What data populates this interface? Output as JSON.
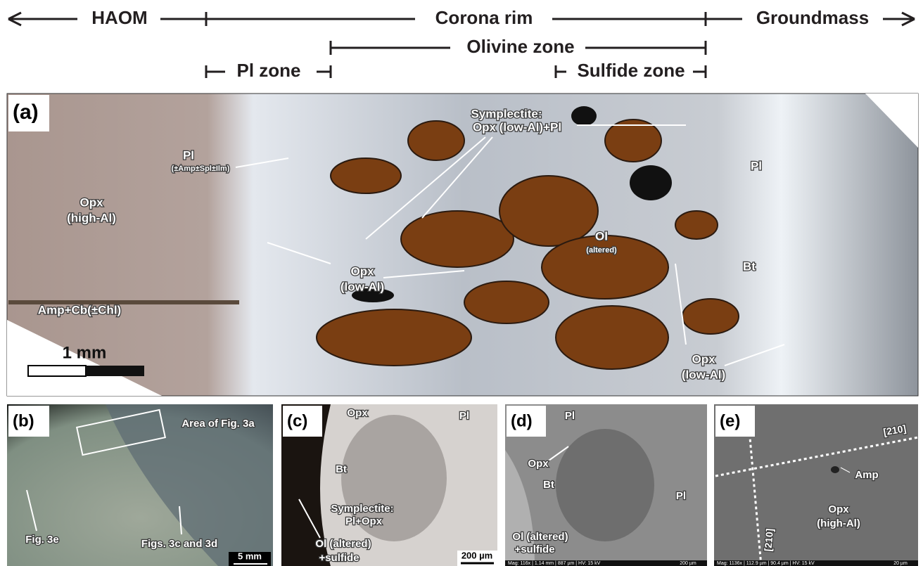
{
  "header": {
    "left": "HAOM",
    "center": "Corona rim",
    "right": "Groundmass",
    "olivine_zone": "Olivine zone",
    "pl_zone": "Pl zone",
    "sulfide_zone": "Sulfide zone"
  },
  "panels": [
    {
      "label": "(a)",
      "annotations": [
        "Symplectite:",
        "Opx (low-Al)+Pl",
        "Pl",
        "(±Amp±Spl±Ilm)",
        "Opx",
        "(high-Al)",
        "Opx",
        "(low-Al)",
        "Ol",
        "(altered)",
        "Pl",
        "Bt",
        "Amp+Cb(±Chl)",
        "Opx",
        "(low-Al)"
      ],
      "scale_bar": "1 mm"
    },
    {
      "label": "(b)",
      "annotations": [
        "Area of Fig. 3a",
        "Fig. 3e",
        "Figs. 3c and 3d"
      ],
      "scale_bar": "5 mm"
    },
    {
      "label": "(c)",
      "annotations": [
        "Opx",
        "Pl",
        "Bt",
        "Symplectite:",
        "Pl+Opx",
        "Ol (altered)",
        "+sulfide"
      ],
      "scale_bar": "200 µm"
    },
    {
      "label": "(d)",
      "annotations": [
        "Pl",
        "Opx",
        "Bt",
        "Pl",
        "Ol (altered)",
        "+sulfide"
      ],
      "footer": "Mag: 116x | 1.14 mm | 887 µm | HV: 15 kV",
      "scale_bar": "200 µm"
    },
    {
      "label": "(e)",
      "annotations": [
        "[210]",
        "Amp",
        "Opx",
        "(high-Al)",
        "[210]"
      ],
      "footer": "Mag: 1136x | 112.9 µm | 90.4 µm | HV: 15 kV",
      "scale_bar": "20 µm"
    }
  ]
}
